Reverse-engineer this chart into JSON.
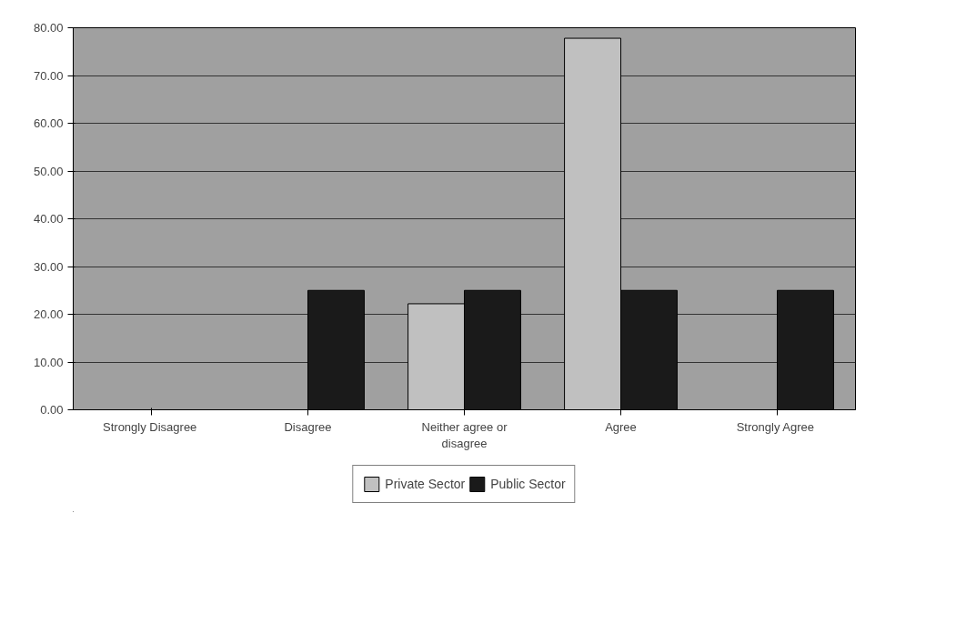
{
  "chart_data": {
    "type": "bar",
    "categories": [
      "Strongly  Disagree",
      "Disagree",
      "Neither agree or disagree",
      "Agree",
      "Strongly  Agree"
    ],
    "series": [
      {
        "name": "Private Sector",
        "color": "#c0c0c0",
        "values": [
          0,
          0,
          22.2,
          77.8,
          0
        ]
      },
      {
        "name": "Public Sector",
        "color": "#1a1a1a",
        "values": [
          0,
          25,
          25,
          25,
          25
        ]
      }
    ],
    "ylim": [
      0,
      80
    ],
    "yticks": [
      {
        "value": 0,
        "label": "0.00"
      },
      {
        "value": 10,
        "label": "10.00"
      },
      {
        "value": 20,
        "label": "20.00"
      },
      {
        "value": 30,
        "label": "30.00"
      },
      {
        "value": 40,
        "label": "40.00"
      },
      {
        "value": 50,
        "label": "50.00"
      },
      {
        "value": 60,
        "label": "60.00"
      },
      {
        "value": 70,
        "label": "70.00"
      },
      {
        "value": 80,
        "label": "80.00"
      }
    ],
    "grid": "y",
    "legend": "bottom"
  }
}
